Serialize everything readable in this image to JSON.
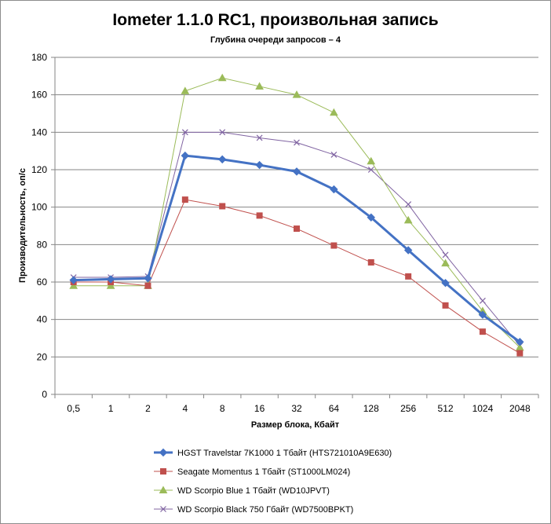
{
  "chart_data": {
    "type": "line",
    "title": "Iometer 1.1.0 RC1, произвольная запись",
    "subtitle": "Глубина очереди запросов – 4",
    "xlabel": "Размер блока, Кбайт",
    "ylabel": "Производительность,  оп/с",
    "categories": [
      "0,5",
      "1",
      "2",
      "4",
      "8",
      "16",
      "32",
      "64",
      "128",
      "256",
      "512",
      "1024",
      "2048"
    ],
    "ylim": [
      0,
      180
    ],
    "yticks": [
      "0",
      "20",
      "40",
      "60",
      "80",
      "100",
      "120",
      "140",
      "160",
      "180"
    ],
    "grid": true,
    "legend_position": "bottom",
    "series": [
      {
        "name": "HGST Travelstar 7K1000 1 Тбайт (HTS721010A9E630)",
        "color": "#4472c4",
        "marker": "diamond",
        "values": [
          61,
          61.5,
          62,
          127.5,
          125.5,
          122.5,
          119,
          109.5,
          94.5,
          77,
          59.5,
          42.5,
          28
        ]
      },
      {
        "name": "Seagate Momentus 1 Тбайт  (ST1000LM024)",
        "color": "#c0504d",
        "marker": "square",
        "values": [
          60,
          60,
          58,
          104,
          100.5,
          95.5,
          88.5,
          79.5,
          70.5,
          63,
          47.5,
          33.5,
          22
        ]
      },
      {
        "name": "WD Scorpio Blue 1 Тбайт (WD10JPVT)",
        "color": "#9bbb59",
        "marker": "triangle",
        "values": [
          58,
          58,
          58,
          162,
          169,
          164.5,
          160,
          150.5,
          124.5,
          93,
          70,
          44.5,
          25
        ]
      },
      {
        "name": "WD Scorpio Black 750 Гбайт (WD7500BPKT)",
        "color": "#8064a2",
        "marker": "x",
        "values": [
          62.5,
          62.5,
          63,
          140,
          140,
          137,
          134.5,
          128,
          120,
          101.5,
          74.5,
          50,
          26
        ]
      }
    ]
  }
}
